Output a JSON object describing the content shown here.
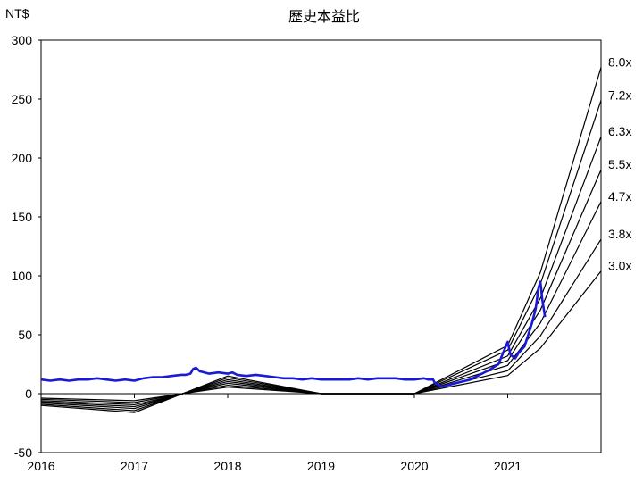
{
  "chart_data": {
    "type": "line",
    "title": "歷史本益比",
    "ylabel": "NT$",
    "xlabel": "",
    "ylim": [
      -50,
      300
    ],
    "xlim": [
      2016,
      2022
    ],
    "yticks": [
      -50,
      0,
      50,
      100,
      150,
      200,
      250,
      300
    ],
    "xticks": [
      "2016",
      "2017",
      "2018",
      "2019",
      "2020",
      "2021"
    ],
    "grid": false,
    "colors": {
      "price": "#1a1ad6",
      "bands": "#000000"
    },
    "price_series": {
      "x": [
        2016.0,
        2016.1,
        2016.2,
        2016.3,
        2016.4,
        2016.5,
        2016.6,
        2016.7,
        2016.8,
        2016.9,
        2017.0,
        2017.1,
        2017.2,
        2017.3,
        2017.4,
        2017.5,
        2017.55,
        2017.6,
        2017.63,
        2017.66,
        2017.7,
        2017.8,
        2017.9,
        2018.0,
        2018.05,
        2018.1,
        2018.2,
        2018.3,
        2018.4,
        2018.5,
        2018.6,
        2018.7,
        2018.8,
        2018.9,
        2019.0,
        2019.1,
        2019.2,
        2019.3,
        2019.4,
        2019.5,
        2019.6,
        2019.7,
        2019.8,
        2019.9,
        2020.0,
        2020.1,
        2020.15,
        2020.2,
        2020.22,
        2020.3,
        2020.4,
        2020.5,
        2020.6,
        2020.7,
        2020.8,
        2020.9,
        2021.0,
        2021.03,
        2021.08,
        2021.12,
        2021.18,
        2021.22,
        2021.26,
        2021.3,
        2021.33,
        2021.35,
        2021.37,
        2021.4
      ],
      "y": [
        12,
        11,
        12,
        11,
        12,
        12,
        13,
        12,
        11,
        12,
        11,
        13,
        14,
        14,
        15,
        16,
        16,
        17,
        21,
        22,
        19,
        17,
        18,
        17,
        18,
        16,
        15,
        16,
        15,
        14,
        13,
        13,
        12,
        13,
        12,
        12,
        12,
        12,
        13,
        12,
        13,
        13,
        13,
        12,
        12,
        13,
        12,
        12,
        9,
        6,
        8,
        10,
        12,
        16,
        20,
        25,
        44,
        33,
        30,
        35,
        40,
        50,
        60,
        72,
        90,
        95,
        80,
        65
      ]
    },
    "series": [
      {
        "name": "8.0x",
        "x": [
          2016,
          2017,
          2018,
          2019,
          2020,
          2021,
          2021.35,
          2022
        ],
        "y": [
          -10,
          -16,
          15,
          0,
          0,
          41,
          103,
          277
        ]
      },
      {
        "name": "7.2x",
        "x": [
          2016,
          2017,
          2018,
          2019,
          2020,
          2021,
          2021.35,
          2022
        ],
        "y": [
          -9,
          -14.4,
          13.5,
          0,
          0,
          37,
          93,
          249
        ]
      },
      {
        "name": "6.3x",
        "x": [
          2016,
          2017,
          2018,
          2019,
          2020,
          2021,
          2021.35,
          2022
        ],
        "y": [
          -7.9,
          -12.6,
          11.8,
          0,
          0,
          32,
          81,
          218
        ]
      },
      {
        "name": "5.5x",
        "x": [
          2016,
          2017,
          2018,
          2019,
          2020,
          2021,
          2021.35,
          2022
        ],
        "y": [
          -6.9,
          -11,
          10.3,
          0,
          0,
          28,
          71,
          190
        ]
      },
      {
        "name": "4.7x",
        "x": [
          2016,
          2017,
          2018,
          2019,
          2020,
          2021,
          2021.35,
          2022
        ],
        "y": [
          -5.9,
          -9.4,
          8.8,
          0,
          0,
          24,
          60,
          163
        ]
      },
      {
        "name": "3.8x",
        "x": [
          2016,
          2017,
          2018,
          2019,
          2020,
          2021,
          2021.35,
          2022
        ],
        "y": [
          -4.8,
          -7.6,
          7.1,
          0,
          0,
          19.5,
          49,
          131
        ]
      },
      {
        "name": "3.0x",
        "x": [
          2016,
          2017,
          2018,
          2019,
          2020,
          2021,
          2021.35,
          2022
        ],
        "y": [
          -3.8,
          -6,
          5.6,
          0,
          0,
          15.4,
          38.6,
          104
        ]
      }
    ]
  }
}
